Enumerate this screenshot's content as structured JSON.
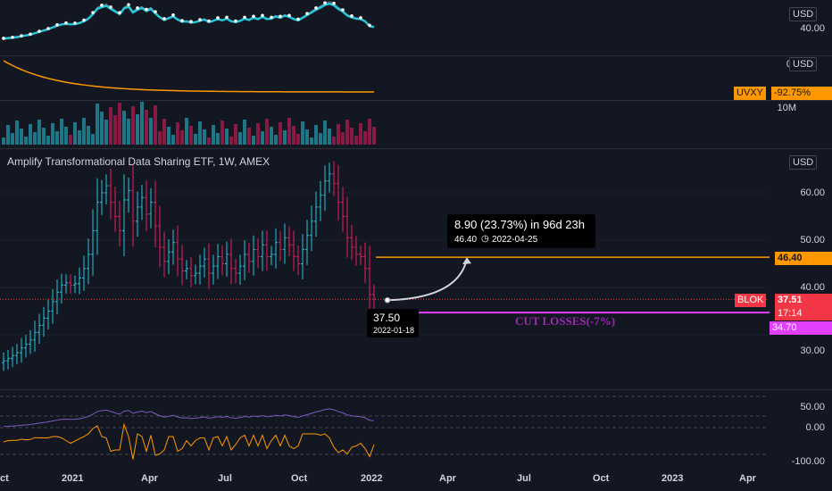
{
  "header": {
    "title": "Amplify Transformational Data Sharing ETF, 1W, AMEX"
  },
  "currency_buttons": {
    "top": "USD",
    "uvxy_pane": "USD",
    "main": "USD"
  },
  "top_pane": {
    "price_label": "40.00"
  },
  "uvxy_pane": {
    "axis_label": "0.",
    "symbol": "UVXY",
    "change": "-92.75%",
    "color": "#ff9800"
  },
  "volume_pane": {
    "axis_label": "10M"
  },
  "main_pane": {
    "axis_labels": [
      "60.00",
      "50.00",
      "40.00",
      "30.00"
    ],
    "target_tag": "46.40",
    "symbol_tag": "BLOK",
    "price_tag": "37.51",
    "countdown_tag": "17:14",
    "stop_tag": "34.70",
    "cut_losses_text": "CUT LOSSES(-7%)",
    "projection": {
      "headline": "8.90 (23.73%) in 96d 23h",
      "detail_price": "46.40",
      "detail_date": "2022-04-25"
    },
    "entry": {
      "price": "37.50",
      "date": "2022-01-18"
    }
  },
  "oscillator_pane": {
    "axis_labels": [
      "50.00",
      "0.00",
      "-100.00"
    ]
  },
  "time_axis": [
    "2021",
    "Apr",
    "Jul",
    "Oct",
    "2022",
    "Apr",
    "Jul",
    "Oct",
    "2023",
    "Apr"
  ],
  "time_axis_partial": "ct",
  "colors": {
    "up": "#26c6da",
    "down": "#e91e63",
    "target": "#ff9800",
    "stop": "#e040fb",
    "tag_red": "#f23645"
  },
  "chart_data": {
    "type": "candlestick",
    "title": "Amplify Transformational Data Sharing ETF, 1W, AMEX",
    "timeframe": "1W",
    "y_range": [
      24,
      70
    ],
    "target_price": 46.4,
    "last_price": 37.51,
    "stop_price": 34.7,
    "entry": {
      "price": 37.5,
      "date": "2022-01-18"
    },
    "target": {
      "price": 46.4,
      "date": "2022-04-25",
      "gain": 8.9,
      "gain_pct": 23.73
    },
    "closes": [
      24.5,
      25.0,
      25.6,
      26.2,
      27.2,
      28.0,
      28.9,
      30.5,
      32.0,
      33.5,
      35.0,
      37.0,
      39.0,
      40.5,
      41.0,
      40.5,
      40.8,
      42.0,
      44.0,
      47.0,
      52.0,
      58.0,
      60.0,
      61.5,
      58.0,
      55.0,
      52.0,
      58.5,
      60.5,
      54.0,
      57.0,
      59.0,
      55.5,
      58.0,
      53.0,
      48.5,
      45.5,
      47.5,
      49.5,
      46.0,
      43.5,
      44.0,
      42.5,
      43.0,
      44.5,
      46.0,
      43.0,
      44.5,
      46.5,
      45.0,
      47.0,
      44.0,
      43.0,
      44.5,
      47.0,
      45.5,
      48.0,
      46.5,
      49.0,
      46.5,
      47.0,
      49.5,
      48.0,
      50.5,
      49.0,
      46.5,
      45.0,
      48.0,
      51.0,
      54.0,
      57.0,
      59.5,
      62.5,
      64.0,
      62.0,
      58.0,
      55.0,
      50.5,
      48.5,
      47.0,
      46.5,
      44.0,
      38.5,
      37.5
    ]
  }
}
